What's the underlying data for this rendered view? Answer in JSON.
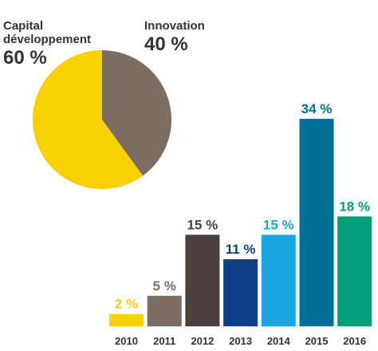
{
  "chart_data": [
    {
      "type": "pie",
      "slices": [
        {
          "name": "Capital\ndéveloppement",
          "value": 60,
          "value_label": "60 %",
          "color": "#F9D100"
        },
        {
          "name": "Innovation",
          "value": 40,
          "value_label": "40 %",
          "color": "#7B6D62"
        }
      ]
    },
    {
      "type": "bar",
      "categories": [
        "2010",
        "2011",
        "2012",
        "2013",
        "2014",
        "2015",
        "2016"
      ],
      "values": [
        2,
        5,
        15,
        11,
        15,
        34,
        18
      ],
      "value_labels": [
        "2 %",
        "5 %",
        "15 %",
        "11 %",
        "15 %",
        "34 %",
        "18 %"
      ],
      "colors": [
        "#F9D100",
        "#7B6D62",
        "#4A3F3C",
        "#0F3F87",
        "#19A6E0",
        "#007196",
        "#00A07A"
      ],
      "grid": false,
      "legend": "none"
    }
  ]
}
